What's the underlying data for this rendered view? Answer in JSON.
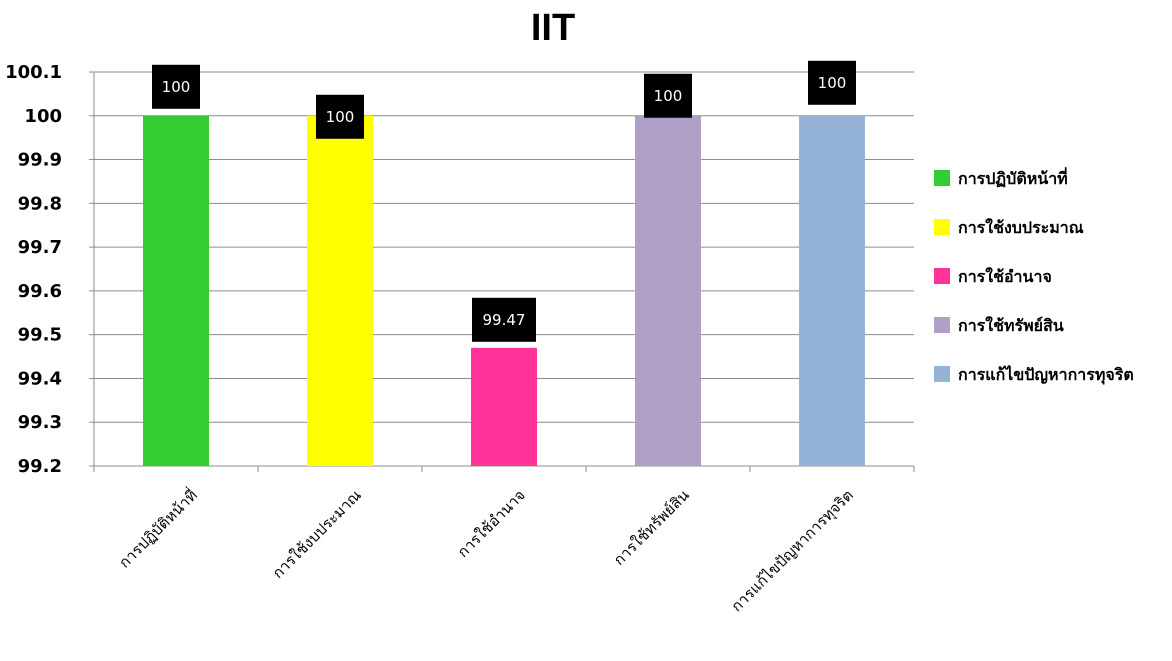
{
  "chart_data": {
    "type": "bar",
    "title": "IIT",
    "xlabel": "",
    "ylabel": "",
    "ylim": [
      99.2,
      100.1
    ],
    "yticks": [
      "99.2",
      "99.3",
      "99.4",
      "99.5",
      "99.6",
      "99.7",
      "99.8",
      "99.9",
      "100",
      "100.1"
    ],
    "categories": [
      "การปฏิบัติหน้าที่",
      "การใช้งบประมาณ",
      "การใช้อำนาจ",
      "การใช้ทรัพย์สิน",
      "การแก้ไขปัญหาการทุจริต"
    ],
    "values": [
      100,
      100,
      99.47,
      100,
      100
    ],
    "data_labels": [
      "100",
      "100",
      "99.47",
      "100",
      "100"
    ],
    "colors": [
      "#33cc33",
      "#ffff00",
      "#ff3399",
      "#b0a0c8",
      "#95b3d7"
    ],
    "grid": true,
    "legend_position": "right",
    "legend": [
      "การปฏิบัติหน้าที่",
      "การใช้งบประมาณ",
      "การใช้อำนาจ",
      "การใช้ทรัพย์สิน",
      "การแก้ไขปัญหาการทุจริต"
    ]
  }
}
